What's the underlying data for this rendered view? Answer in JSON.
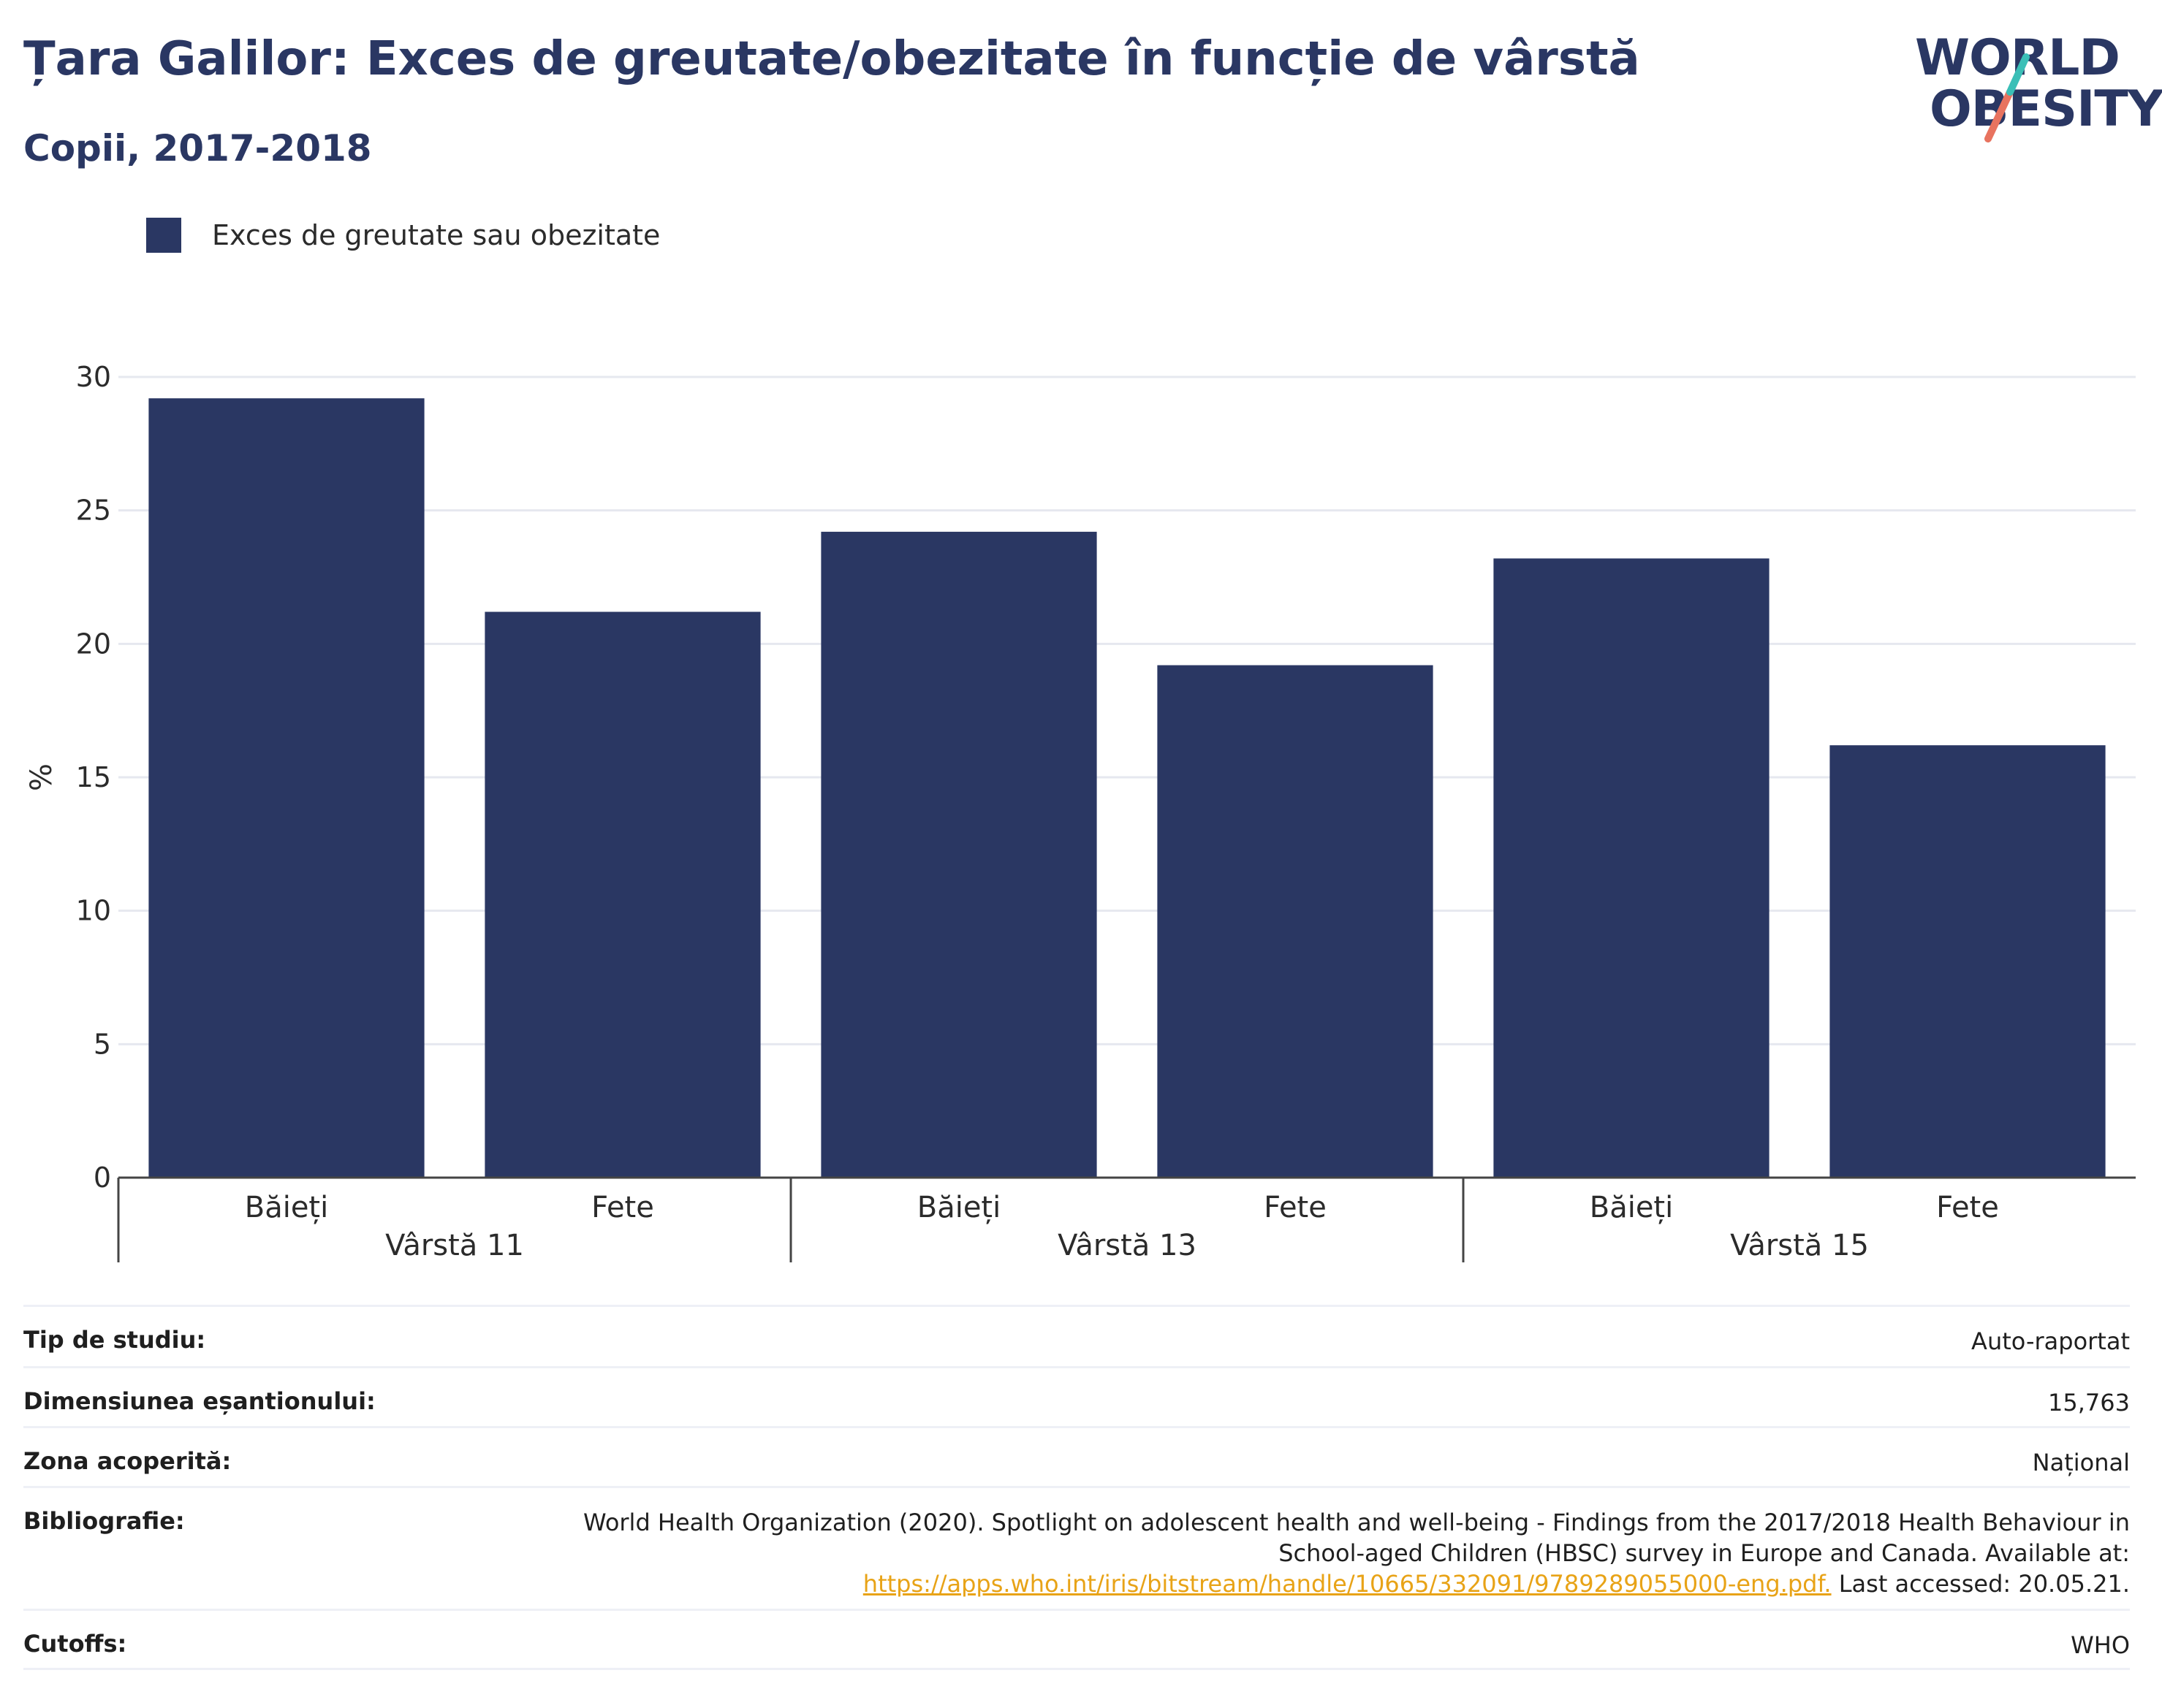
{
  "header": {
    "title": "Țara Galilor: Exces de greutate/obezitate în funcție de vârstă",
    "subtitle": "Copii, 2017-2018"
  },
  "logo": {
    "line1": "WORLD",
    "line2": "OBESITY",
    "colors": {
      "navy": "#2a3763",
      "teal": "#3bbfb7",
      "coral": "#e8735f"
    }
  },
  "legend": {
    "label": "Exces de greutate sau obezitate",
    "color": "#2a3763"
  },
  "chart_data": {
    "type": "bar",
    "categories": [
      "Băieți",
      "Fete",
      "Băieți",
      "Fete",
      "Băieți",
      "Fete"
    ],
    "groups": [
      {
        "label": "Vârstă 11",
        "members": [
          0,
          1
        ]
      },
      {
        "label": "Vârstă 13",
        "members": [
          2,
          3
        ]
      },
      {
        "label": "Vârstă 15",
        "members": [
          4,
          5
        ]
      }
    ],
    "series": [
      {
        "name": "Exces de greutate sau obezitate",
        "values": [
          29.2,
          21.2,
          24.2,
          19.2,
          23.2,
          16.2
        ],
        "color": "#2a3763"
      }
    ],
    "ylabel": "%",
    "ylim": [
      0,
      30
    ],
    "yticks": [
      0,
      5,
      10,
      15,
      20,
      25,
      30
    ],
    "grid": true,
    "legend_position": "top-left"
  },
  "info": {
    "rows": [
      {
        "key": "Tip de studiu:",
        "value": "Auto-raportat"
      },
      {
        "key": "Dimensiunea eșantionului:",
        "value": "15,763"
      },
      {
        "key": "Zona acoperită:",
        "value": "Național"
      },
      {
        "key": "Bibliografie:",
        "value_line1": "World Health Organization (2020). Spotlight on adolescent health and well-being - Findings from the 2017/2018 Health Behaviour in",
        "value_line2": "School-aged Children (HBSC) survey in Europe and Canada. Available at:",
        "link": "https://apps.who.int/iris/bitstream/handle/10665/332091/9789289055000-eng.pdf.",
        "value_tail": " Last accessed: 20.05.21."
      },
      {
        "key": "Cutoffs:",
        "value": "WHO"
      }
    ]
  }
}
